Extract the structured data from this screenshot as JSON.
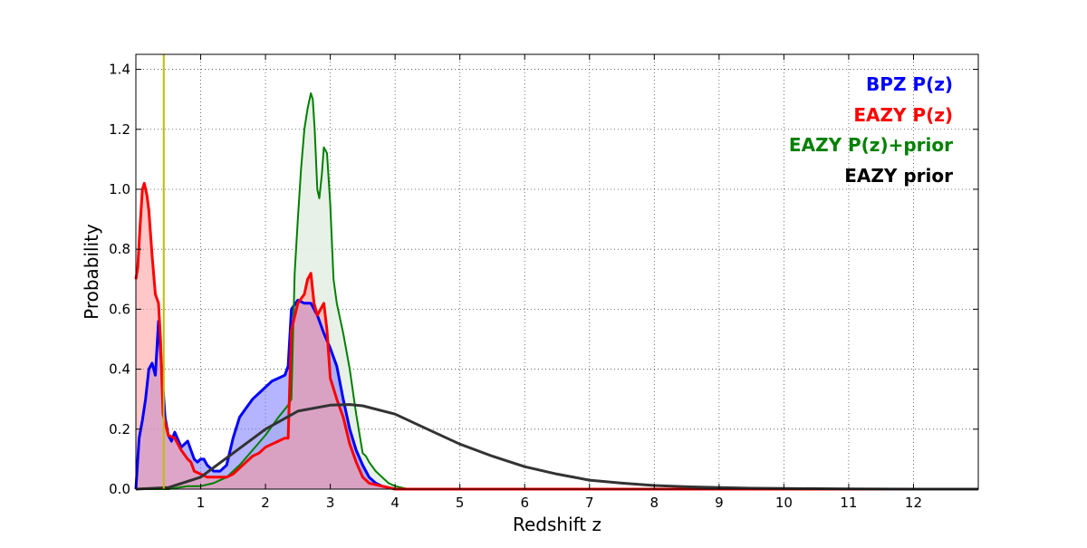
{
  "chart_data": {
    "type": "area",
    "title": "",
    "xlabel": "Redshift z",
    "ylabel": "Probability",
    "xlim": [
      0,
      13
    ],
    "ylim": [
      0,
      1.45
    ],
    "x_ticks": [
      1,
      2,
      3,
      4,
      5,
      6,
      7,
      8,
      9,
      10,
      11,
      12
    ],
    "x_tick_labels": [
      "1",
      "2",
      "3",
      "4",
      "5",
      "6",
      "7",
      "8",
      "9",
      "10",
      "11",
      "12"
    ],
    "y_ticks": [
      0.0,
      0.2,
      0.4,
      0.6,
      0.8,
      1.0,
      1.2,
      1.4
    ],
    "y_tick_labels": [
      "0.0",
      "0.2",
      "0.4",
      "0.6",
      "0.8",
      "1.0",
      "1.2",
      "1.4"
    ],
    "grid": true,
    "legend_position": "top-right",
    "vertical_line": {
      "x": 0.43,
      "color": "#bfbf00"
    },
    "series": [
      {
        "name": "BPZ P(z)",
        "color": "#0000ff",
        "fill": "#7777ff",
        "x": [
          0,
          0.05,
          0.1,
          0.15,
          0.2,
          0.25,
          0.3,
          0.35,
          0.4,
          0.45,
          0.5,
          0.55,
          0.6,
          0.7,
          0.8,
          0.85,
          0.9,
          0.95,
          1.0,
          1.05,
          1.1,
          1.15,
          1.2,
          1.3,
          1.4,
          1.5,
          1.6,
          1.7,
          1.8,
          1.9,
          2.0,
          2.1,
          2.2,
          2.3,
          2.35,
          2.4,
          2.5,
          2.6,
          2.7,
          2.8,
          2.9,
          3.0,
          3.1,
          3.2,
          3.3,
          3.4,
          3.5,
          3.6,
          3.7,
          3.8,
          4.0,
          13
        ],
        "y": [
          0.0,
          0.17,
          0.23,
          0.3,
          0.4,
          0.42,
          0.38,
          0.56,
          0.4,
          0.24,
          0.18,
          0.16,
          0.19,
          0.14,
          0.16,
          0.13,
          0.1,
          0.09,
          0.1,
          0.1,
          0.08,
          0.07,
          0.06,
          0.06,
          0.08,
          0.17,
          0.24,
          0.27,
          0.3,
          0.32,
          0.34,
          0.36,
          0.37,
          0.38,
          0.41,
          0.6,
          0.63,
          0.62,
          0.62,
          0.58,
          0.52,
          0.47,
          0.41,
          0.3,
          0.2,
          0.13,
          0.08,
          0.04,
          0.02,
          0.01,
          0.0,
          0.0
        ]
      },
      {
        "name": "EAZY P(z)",
        "color": "#ff0000",
        "fill": "#ff9999",
        "x": [
          0,
          0.03,
          0.06,
          0.1,
          0.13,
          0.17,
          0.2,
          0.25,
          0.3,
          0.35,
          0.38,
          0.42,
          0.5,
          0.6,
          0.7,
          0.8,
          0.85,
          0.9,
          1.0,
          1.1,
          1.2,
          1.3,
          1.4,
          1.5,
          1.6,
          1.7,
          1.8,
          1.9,
          2.0,
          2.1,
          2.2,
          2.3,
          2.35,
          2.4,
          2.5,
          2.6,
          2.65,
          2.7,
          2.75,
          2.8,
          2.85,
          2.9,
          2.95,
          3.0,
          3.1,
          3.2,
          3.3,
          3.4,
          3.5,
          3.6,
          3.8,
          4.0,
          13
        ],
        "y": [
          0.7,
          0.74,
          0.86,
          1.0,
          1.02,
          0.98,
          0.93,
          0.78,
          0.65,
          0.62,
          0.5,
          0.25,
          0.18,
          0.17,
          0.13,
          0.1,
          0.09,
          0.06,
          0.05,
          0.04,
          0.04,
          0.04,
          0.04,
          0.05,
          0.07,
          0.09,
          0.11,
          0.12,
          0.14,
          0.15,
          0.16,
          0.17,
          0.17,
          0.53,
          0.62,
          0.65,
          0.7,
          0.72,
          0.62,
          0.58,
          0.6,
          0.62,
          0.53,
          0.37,
          0.3,
          0.24,
          0.15,
          0.09,
          0.04,
          0.02,
          0.01,
          0.0,
          0.0
        ]
      },
      {
        "name": "EAZY P(z)+prior",
        "color": "#008000",
        "fill": "#e6f0e6",
        "x": [
          0,
          0.5,
          0.8,
          1.0,
          1.2,
          1.4,
          1.6,
          1.8,
          2.0,
          2.2,
          2.35,
          2.4,
          2.45,
          2.5,
          2.55,
          2.6,
          2.65,
          2.7,
          2.73,
          2.76,
          2.8,
          2.83,
          2.87,
          2.9,
          2.95,
          3.0,
          3.05,
          3.1,
          3.2,
          3.3,
          3.4,
          3.5,
          3.55,
          3.6,
          3.7,
          3.8,
          3.9,
          4.0,
          4.2,
          13
        ],
        "y": [
          0.0,
          0.0,
          0.01,
          0.01,
          0.02,
          0.04,
          0.08,
          0.13,
          0.18,
          0.24,
          0.28,
          0.3,
          0.72,
          0.9,
          1.07,
          1.2,
          1.27,
          1.32,
          1.3,
          1.2,
          1.0,
          0.97,
          1.05,
          1.14,
          1.12,
          0.95,
          0.7,
          0.62,
          0.52,
          0.4,
          0.25,
          0.12,
          0.11,
          0.09,
          0.06,
          0.04,
          0.02,
          0.01,
          0.0,
          0.0
        ]
      },
      {
        "name": "EAZY prior",
        "color": "#333333",
        "x": [
          0,
          0.5,
          1.0,
          1.5,
          2.0,
          2.5,
          3.0,
          3.3,
          3.5,
          4.0,
          4.5,
          5.0,
          5.5,
          6.0,
          6.5,
          7.0,
          7.5,
          8.0,
          8.5,
          9.0,
          9.5,
          10.0,
          11.0,
          12.0,
          13.0
        ],
        "y": [
          0.0,
          0.005,
          0.04,
          0.12,
          0.2,
          0.26,
          0.28,
          0.282,
          0.278,
          0.25,
          0.2,
          0.15,
          0.11,
          0.075,
          0.05,
          0.03,
          0.02,
          0.012,
          0.008,
          0.005,
          0.003,
          0.002,
          0.001,
          0.0,
          0.0
        ]
      }
    ]
  }
}
